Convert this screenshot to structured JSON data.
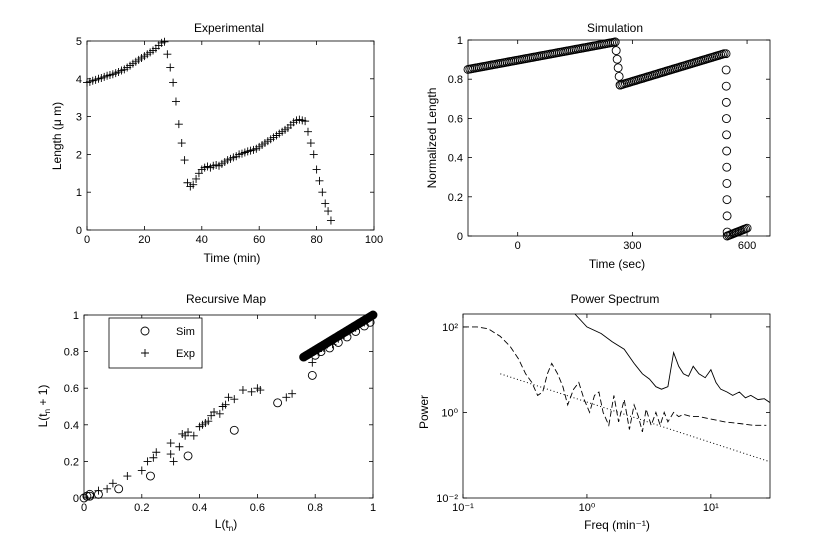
{
  "chart_data": [
    {
      "id": "experimental",
      "type": "scatter",
      "title": "Experimental",
      "xlabel": "Time (min)",
      "ylabel": "Length (μ m)",
      "xlim": [
        0,
        100
      ],
      "ylim": [
        0,
        5
      ],
      "xticks": [
        0,
        20,
        40,
        60,
        80,
        100
      ],
      "xticklabels": [
        "0",
        "20",
        "40",
        "60",
        "80",
        "100"
      ],
      "yticks": [
        0,
        1,
        2,
        3,
        4,
        5
      ],
      "yticklabels": [
        "0",
        "1",
        "2",
        "3",
        "4",
        "5"
      ],
      "marker": "plus",
      "x": [
        0,
        1,
        2,
        3,
        4,
        5,
        6,
        7,
        8,
        9,
        10,
        11,
        12,
        13,
        14,
        15,
        16,
        17,
        18,
        19,
        20,
        21,
        22,
        23,
        24,
        25,
        26,
        27,
        28,
        29,
        30,
        31,
        32,
        33,
        34,
        35,
        36,
        37,
        38,
        39,
        40,
        41,
        42,
        43,
        44,
        45,
        46,
        47,
        48,
        49,
        50,
        51,
        52,
        53,
        54,
        55,
        56,
        57,
        58,
        59,
        60,
        61,
        62,
        63,
        64,
        65,
        66,
        67,
        68,
        69,
        70,
        71,
        72,
        73,
        74,
        75,
        76,
        77,
        78,
        79,
        80,
        81,
        82,
        83,
        84,
        85
      ],
      "y": [
        3.9,
        3.92,
        3.95,
        3.97,
        4.0,
        4.02,
        4.05,
        4.08,
        4.1,
        4.12,
        4.15,
        4.18,
        4.22,
        4.25,
        4.3,
        4.35,
        4.4,
        4.45,
        4.5,
        4.55,
        4.6,
        4.65,
        4.7,
        4.75,
        4.8,
        4.88,
        4.95,
        4.98,
        4.65,
        4.3,
        3.9,
        3.4,
        2.8,
        2.3,
        1.85,
        1.25,
        1.15,
        1.2,
        1.35,
        1.5,
        1.6,
        1.65,
        1.68,
        1.65,
        1.7,
        1.72,
        1.7,
        1.75,
        1.8,
        1.85,
        1.88,
        1.92,
        1.95,
        2.0,
        2.02,
        2.05,
        2.08,
        2.1,
        2.12,
        2.15,
        2.2,
        2.25,
        2.3,
        2.35,
        2.4,
        2.45,
        2.5,
        2.55,
        2.6,
        2.65,
        2.7,
        2.78,
        2.85,
        2.9,
        2.92,
        2.9,
        2.88,
        2.6,
        2.3,
        2.0,
        1.6,
        1.3,
        1.0,
        0.7,
        0.5,
        0.25
      ]
    },
    {
      "id": "simulation",
      "type": "scatter",
      "title": "Simulation",
      "xlabel": "Time (sec)",
      "ylabel": "Normalized Length",
      "xlim": [
        -130,
        660
      ],
      "ylim": [
        0,
        1
      ],
      "xticks": [
        0,
        300,
        600
      ],
      "xticklabels": [
        "0",
        "300",
        "600"
      ],
      "yticks": [
        0,
        0.2,
        0.4,
        0.6,
        0.8,
        1
      ],
      "yticklabels": [
        "0",
        "0.2",
        "0.4",
        "0.6",
        "0.8",
        "1"
      ],
      "marker": "circle",
      "segments": [
        {
          "x_start": -130,
          "x_end": 255,
          "y_start": 0.85,
          "y_end": 0.99,
          "count": 80
        },
        {
          "x_start": 255,
          "x_end": 268,
          "y_start": 0.99,
          "y_end": 0.77,
          "count": 6
        },
        {
          "x_start": 268,
          "x_end": 540,
          "y_start": 0.77,
          "y_end": 0.93,
          "count": 60
        },
        {
          "x_start": 545,
          "x_end": 548,
          "y_start": 0.93,
          "y_end": 0.02,
          "count": 12
        },
        {
          "x_start": 548,
          "x_end": 600,
          "y_start": 0.0,
          "y_end": 0.04,
          "count": 14
        }
      ]
    },
    {
      "id": "recursive-map",
      "type": "scatter",
      "title": "Recursive Map",
      "xlabel": "L(t_n)",
      "ylabel": "L(t_n + 1)",
      "xlim": [
        0,
        1
      ],
      "ylim": [
        0,
        1
      ],
      "xticks": [
        0,
        0.2,
        0.4,
        0.6,
        0.8,
        1
      ],
      "xticklabels": [
        "0",
        "0.2",
        "0.4",
        "0.6",
        "0.8",
        "1"
      ],
      "yticks": [
        0,
        0.2,
        0.4,
        0.6,
        0.8,
        1
      ],
      "yticklabels": [
        "0",
        "0.2",
        "0.4",
        "0.6",
        "0.8",
        "1"
      ],
      "legend": {
        "location": "top-left",
        "entries": [
          {
            "label": "Sim",
            "marker": "circle"
          },
          {
            "label": "Exp",
            "marker": "plus"
          }
        ]
      },
      "series": [
        {
          "name": "Sim",
          "marker": "circle",
          "points": [
            [
              0.0,
              0.0
            ],
            [
              0.01,
              0.01
            ],
            [
              0.02,
              0.01
            ],
            [
              0.02,
              0.02
            ],
            [
              0.05,
              0.02
            ],
            [
              0.12,
              0.05
            ],
            [
              0.23,
              0.12
            ],
            [
              0.36,
              0.23
            ],
            [
              0.52,
              0.37
            ],
            [
              0.67,
              0.52
            ],
            [
              0.79,
              0.67
            ],
            [
              0.8,
              0.78
            ],
            [
              0.82,
              0.8
            ],
            [
              0.85,
              0.82
            ],
            [
              0.88,
              0.85
            ],
            [
              0.91,
              0.88
            ],
            [
              0.94,
              0.91
            ],
            [
              0.97,
              0.94
            ],
            [
              0.99,
              0.96
            ]
          ]
        },
        {
          "name": "Exp",
          "marker": "plus",
          "points": [
            [
              0.05,
              0.04
            ],
            [
              0.08,
              0.05
            ],
            [
              0.1,
              0.08
            ],
            [
              0.15,
              0.12
            ],
            [
              0.2,
              0.15
            ],
            [
              0.22,
              0.2
            ],
            [
              0.24,
              0.22
            ],
            [
              0.25,
              0.25
            ],
            [
              0.3,
              0.24
            ],
            [
              0.3,
              0.3
            ],
            [
              0.31,
              0.2
            ],
            [
              0.33,
              0.28
            ],
            [
              0.34,
              0.35
            ],
            [
              0.35,
              0.34
            ],
            [
              0.36,
              0.36
            ],
            [
              0.38,
              0.34
            ],
            [
              0.4,
              0.39
            ],
            [
              0.41,
              0.4
            ],
            [
              0.42,
              0.41
            ],
            [
              0.43,
              0.42
            ],
            [
              0.44,
              0.45
            ],
            [
              0.45,
              0.47
            ],
            [
              0.47,
              0.46
            ],
            [
              0.48,
              0.5
            ],
            [
              0.49,
              0.51
            ],
            [
              0.5,
              0.55
            ],
            [
              0.52,
              0.54
            ],
            [
              0.55,
              0.59
            ],
            [
              0.58,
              0.58
            ],
            [
              0.6,
              0.6
            ],
            [
              0.61,
              0.59
            ],
            [
              0.7,
              0.55
            ],
            [
              0.72,
              0.57
            ],
            [
              0.79,
              0.74
            ],
            [
              0.81,
              0.8
            ],
            [
              0.83,
              0.82
            ],
            [
              0.86,
              0.84
            ],
            [
              0.88,
              0.87
            ],
            [
              0.9,
              0.89
            ],
            [
              0.92,
              0.91
            ],
            [
              0.94,
              0.93
            ],
            [
              0.95,
              0.94
            ],
            [
              0.97,
              0.96
            ],
            [
              0.98,
              0.98
            ]
          ]
        },
        {
          "name": "Sim-dense",
          "marker": "circle-filled",
          "x_start": 0.76,
          "x_end": 1.0,
          "y_start": 0.77,
          "y_end": 1.0,
          "count": 40
        }
      ]
    },
    {
      "id": "power-spectrum",
      "type": "line",
      "title": "Power Spectrum",
      "xlabel": "Freq (min⁻¹)",
      "ylabel": "Power",
      "xscale": "log",
      "yscale": "log",
      "xlim": [
        0.1,
        30
      ],
      "ylim": [
        0.01,
        200
      ],
      "xticks": [
        0.1,
        1,
        10
      ],
      "xticklabels": [
        "10⁻¹",
        "10⁰",
        "10¹"
      ],
      "yticks": [
        0.01,
        1,
        100
      ],
      "yticklabels": [
        "10⁻²",
        "10⁰",
        "10²"
      ],
      "series": [
        {
          "name": "solid",
          "style": "solid",
          "x": [
            0.8,
            1.0,
            1.3,
            1.6,
            2.0,
            2.4,
            2.8,
            3.2,
            3.6,
            4.0,
            4.5,
            5.0,
            5.5,
            6.0,
            6.6,
            7.2,
            8.0,
            9.0,
            10.0,
            11.0,
            12.0,
            13.5,
            15.0,
            17.0,
            19.0,
            21.0,
            24.0,
            27.0,
            30.0
          ],
          "y": [
            200,
            100,
            70,
            45,
            30,
            14,
            8,
            6,
            4,
            3.5,
            4.0,
            25,
            12,
            8,
            7,
            12,
            8,
            6.5,
            10,
            5,
            3.5,
            3.0,
            2.5,
            3.0,
            2.2,
            2.5,
            2.0,
            2.1,
            1.7
          ]
        },
        {
          "name": "dashed",
          "style": "dashed",
          "x": [
            0.1,
            0.13,
            0.16,
            0.2,
            0.24,
            0.28,
            0.32,
            0.36,
            0.4,
            0.44,
            0.48,
            0.52,
            0.58,
            0.64,
            0.7,
            0.78,
            0.86,
            0.95,
            1.05,
            1.15,
            1.25,
            1.35,
            1.5,
            1.65,
            1.8,
            2.0,
            2.2,
            2.4,
            2.6,
            2.8,
            3.0,
            3.3,
            3.6,
            3.9,
            4.2,
            4.5,
            5.0,
            5.5,
            6.0,
            7.0,
            8.0,
            10.0,
            13.0,
            17.0,
            22.0,
            28.0
          ],
          "y": [
            100,
            100,
            90,
            60,
            35,
            18,
            8,
            5,
            2.5,
            3.0,
            8,
            14,
            8,
            4,
            1.5,
            3.5,
            5,
            2.0,
            1.0,
            2.5,
            3.0,
            1.0,
            0.5,
            2.5,
            0.6,
            2.0,
            0.4,
            1.5,
            0.8,
            0.35,
            1.2,
            0.5,
            1.0,
            0.5,
            1.0,
            0.6,
            1.0,
            0.8,
            0.9,
            0.8,
            0.8,
            0.7,
            0.6,
            0.55,
            0.5,
            0.5
          ]
        },
        {
          "name": "dotted",
          "style": "dotted",
          "x": [
            0.2,
            30.0
          ],
          "y": [
            8,
            0.07
          ]
        }
      ]
    }
  ]
}
